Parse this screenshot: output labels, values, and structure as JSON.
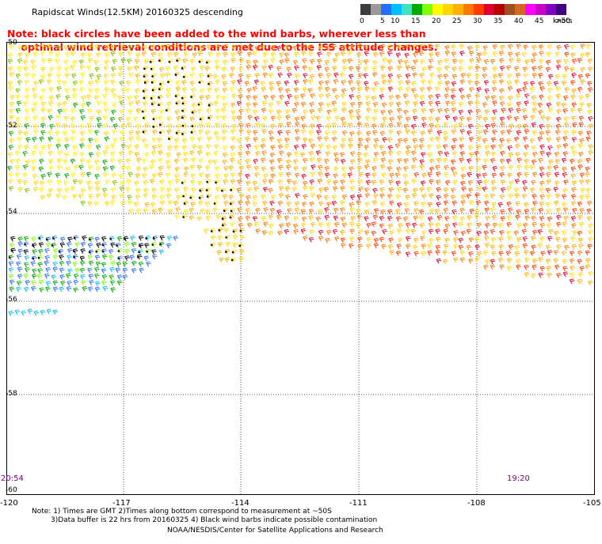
{
  "header": {
    "title": "Rapidscat Winds(12.5KM) 20160325 descending",
    "note_line1": "Note: black circles have been added to the wind barbs, wherever less than",
    "note_line2": "optimal wind retrieval conditions are met due to the ISS attitude changes."
  },
  "legend": {
    "units": "knots",
    "bins": [
      {
        "label": "0",
        "color": "#3c3c3c"
      },
      {
        "label": "",
        "color": "#9a9a9a"
      },
      {
        "label": "5",
        "color": "#2a6bff"
      },
      {
        "label": "10",
        "color": "#00bfff"
      },
      {
        "label": "",
        "color": "#40e0c0"
      },
      {
        "label": "15",
        "color": "#00aa00"
      },
      {
        "label": "",
        "color": "#80ff00"
      },
      {
        "label": "20",
        "color": "#ffff00"
      },
      {
        "label": "",
        "color": "#ffd700"
      },
      {
        "label": "25",
        "color": "#ffb000"
      },
      {
        "label": "",
        "color": "#ff7800"
      },
      {
        "label": "30",
        "color": "#ff3c00"
      },
      {
        "label": "",
        "color": "#e00030"
      },
      {
        "label": "35",
        "color": "#b40000"
      },
      {
        "label": "",
        "color": "#a05020"
      },
      {
        "label": "40",
        "color": "#d2691e"
      },
      {
        "label": "",
        "color": "#ff00ff"
      },
      {
        "label": "45",
        "color": "#cc00cc"
      },
      {
        "label": "",
        "color": "#8000c0"
      },
      {
        "label": ">50",
        "color": "#400080"
      }
    ]
  },
  "map": {
    "lat_labels": [
      "-50",
      "-52",
      "-54",
      "-56",
      "-58",
      "-60"
    ],
    "lon_labels": [
      "-120",
      "-117",
      "-114",
      "-111",
      "-108",
      "-105"
    ],
    "time_left": "20:54",
    "time_right": "19:20"
  },
  "footer": {
    "line1": "Note: 1) Times are GMT 2)Times along bottom correspond to measurement at ~50S",
    "line2": "3)Data buffer is 22 hrs from 20160325 4) Black wind barbs indicate possible contamination",
    "line3": "NOAA/NESDIS/Center for Satellite Applications and Research"
  }
}
